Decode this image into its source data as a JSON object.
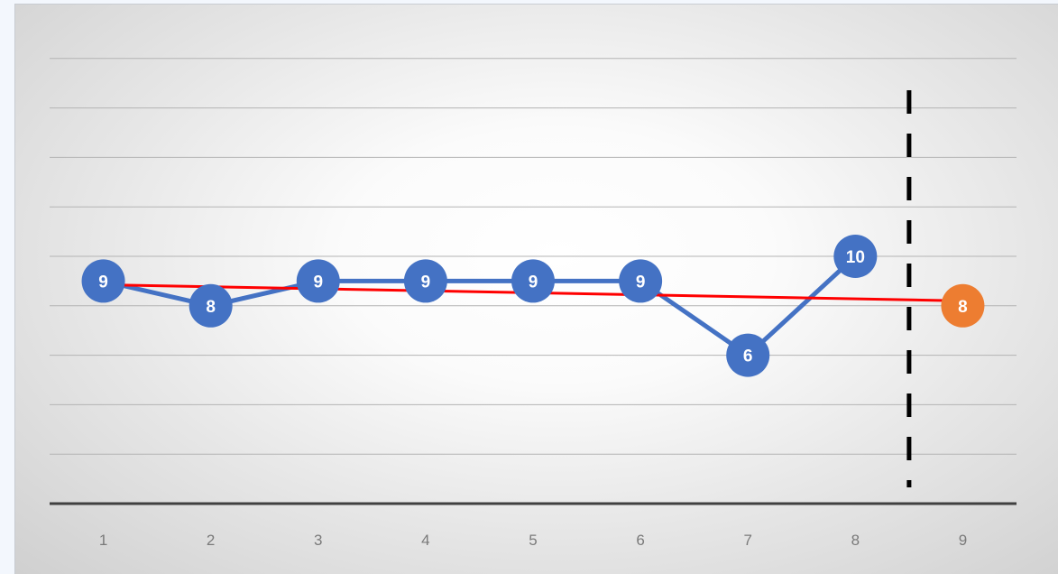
{
  "chart_data": {
    "type": "line",
    "title": "",
    "xlabel": "",
    "ylabel": "",
    "categories": [
      "1",
      "2",
      "3",
      "4",
      "5",
      "6",
      "7",
      "8",
      "9"
    ],
    "ylim": [
      0,
      20
    ],
    "y_gridline_step": 2,
    "series": [
      {
        "role": "actual",
        "x": [
          1,
          2,
          3,
          4,
          5,
          6,
          7,
          8
        ],
        "values": [
          9,
          8,
          9,
          9,
          9,
          9,
          6,
          10
        ],
        "color": "#4472c4"
      },
      {
        "role": "forecast",
        "x": [
          9
        ],
        "values": [
          8
        ],
        "color": "#ed7d31"
      }
    ],
    "trendline": {
      "x": [
        1,
        9
      ],
      "values": [
        8.85,
        8.2
      ],
      "color": "#ff0000"
    },
    "forecast_divider_x": 8.5,
    "grid": true,
    "legend": "none"
  }
}
